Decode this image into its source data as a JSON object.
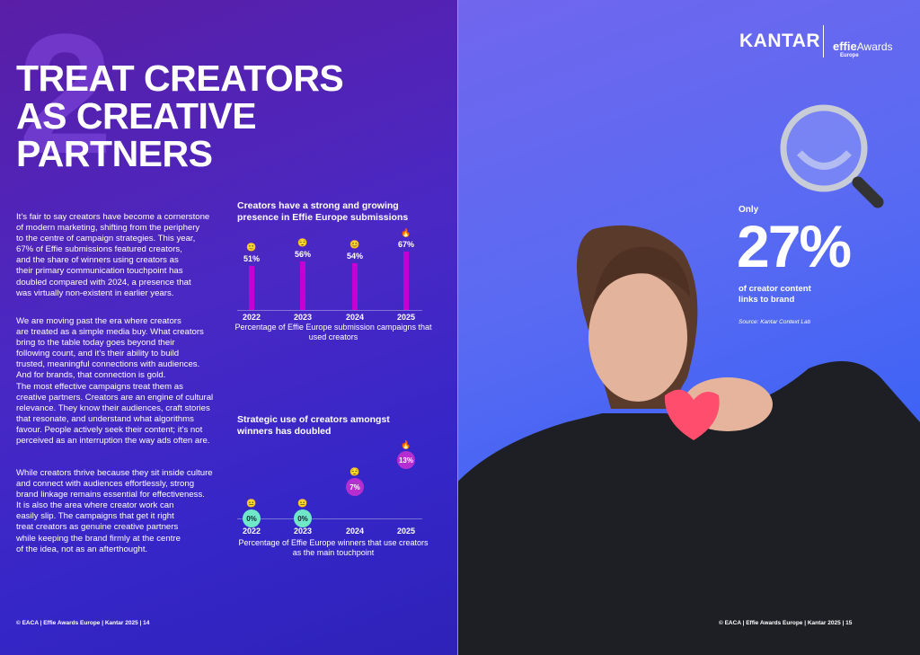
{
  "left_page": {
    "section_number": "2",
    "title_lines": [
      "TREAT CREATORS",
      "AS CREATIVE",
      "PARTNERS"
    ],
    "paragraphs": [
      [
        "It’s fair to say creators have become a cornerstone",
        "of modern marketing, shifting from the periphery",
        "to the centre of campaign strategies. This year,",
        "67% of Effie submissions featured creators,",
        "and the share of winners using creators as",
        "their primary communication touchpoint has",
        "doubled compared with 2024, a presence that",
        "was virtually non-existent in earlier years."
      ],
      [
        "We are moving past the era where creators",
        "are treated as a simple media buy. What creators",
        "bring to the table today goes beyond their",
        "following count, and it’s their ability to build",
        "trusted, meaningful connections with audiences.",
        "And for brands, that connection is gold.",
        "The most effective campaigns treat them as",
        "creative partners. Creators are an engine of cultural",
        "relevance. They know their audiences, craft stories",
        "that resonate, and understand what algorithms",
        "favour. People actively seek their content; it’s not",
        "perceived as an interruption the way ads often are."
      ],
      [
        "While creators thrive because they sit inside culture",
        "and connect with audiences effortlessly, strong",
        "brand linkage remains essential for effectiveness.",
        "It is also the area where creator work can",
        "easily slip. The campaigns that get it right",
        "treat creators as genuine creative partners",
        "while keeping the brand firmly at the centre",
        "of the idea, not as an afterthought."
      ]
    ],
    "footer": "© EACA | Effie Awards Europe | Kantar 2025   |  14"
  },
  "chart_data": [
    {
      "type": "bar",
      "title": "Creators have a strong and growing presence in Effie Europe submissions",
      "categories": [
        "2022",
        "2023",
        "2024",
        "2025"
      ],
      "values": [
        51,
        56,
        54,
        67
      ],
      "data_labels": [
        "51%",
        "56%",
        "54%",
        "67%"
      ],
      "icons": [
        "slightly-smiling-face",
        "relieved-face",
        "smiling-face",
        "fire"
      ],
      "xlabel": "Percentage of Effie Europe submission campaigns that used creators",
      "color": "#c400d2",
      "grid": false
    },
    {
      "type": "scatter",
      "title": "Strategic use of creators amongst winners has doubled",
      "categories": [
        "2022",
        "2023",
        "2024",
        "2025"
      ],
      "values": [
        0,
        0,
        7,
        13
      ],
      "data_labels": [
        "0%",
        "0%",
        "7%",
        "13%"
      ],
      "icons": [
        "neutral-face",
        "neutral-face",
        "relieved-face",
        "fire"
      ],
      "xlabel": "Percentage of Effie Europe winners that use creators as the main touchpoint",
      "colors": [
        "#6ee8c8",
        "#6ee8c8",
        "#b52fd0",
        "#b52fd0"
      ],
      "grid": false
    }
  ],
  "right_page": {
    "brand": "KANTAR",
    "partner_logo": {
      "main": "effie",
      "sub": "Awards",
      "region": "Europe"
    },
    "stat_prefix": "Only",
    "stat_value": "27%",
    "stat_desc_lines": [
      "of creator content",
      "links to brand"
    ],
    "source": "Source: Kantar Context Lab",
    "footer": "© EACA | Effie Awards Europe | Kantar 2025   |  15"
  },
  "colors": {
    "left_bg": "#4a28c4",
    "right_bg": "#4a66f4",
    "accent": "#c400d2"
  }
}
